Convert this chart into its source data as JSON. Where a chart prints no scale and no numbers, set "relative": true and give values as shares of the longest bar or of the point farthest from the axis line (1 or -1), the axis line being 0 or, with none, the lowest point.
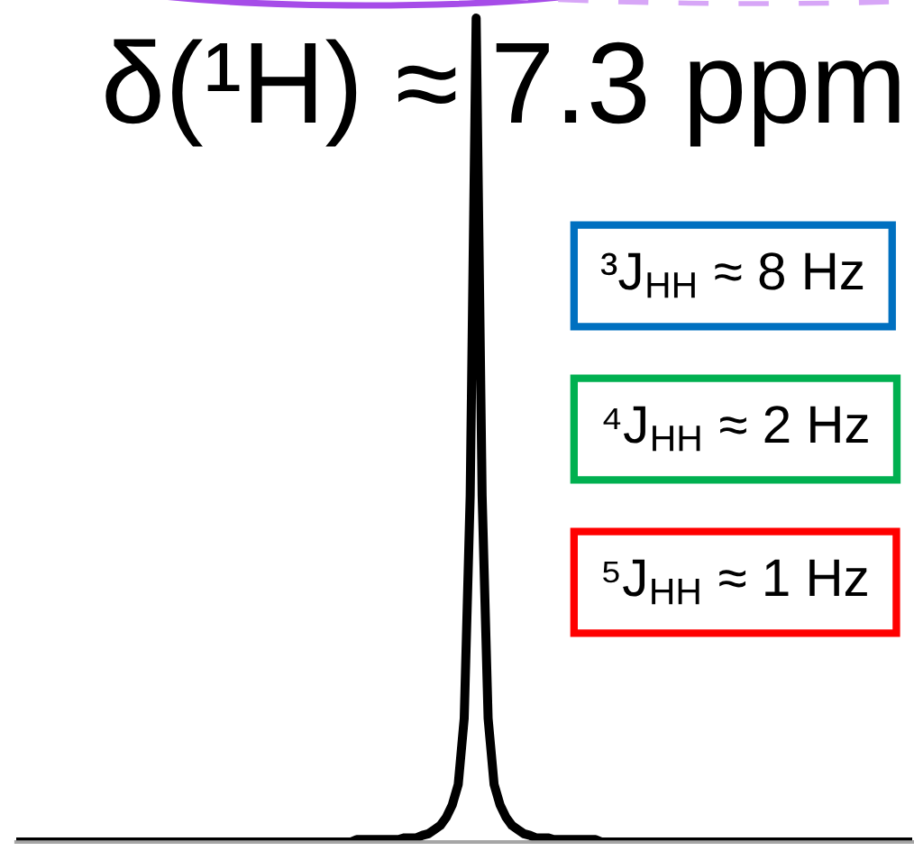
{
  "chart_data": {
    "type": "line",
    "title": "δ(¹H) ≈ 7.3 ppm",
    "relative": true,
    "categories": [
      null,
      null,
      null,
      null,
      null,
      null,
      null,
      null,
      null,
      null,
      null,
      null,
      null,
      null,
      null,
      null,
      null,
      null,
      null,
      null,
      null,
      null,
      null,
      null,
      null,
      null,
      null,
      null,
      null,
      null,
      null,
      null,
      null,
      null,
      null,
      null,
      null,
      null,
      null,
      null,
      null,
      null,
      null,
      null,
      null,
      null,
      null,
      null,
      null,
      null,
      null,
      null,
      null,
      null,
      null,
      null,
      null,
      null,
      null,
      null,
      null,
      null,
      null,
      null,
      null,
      null,
      null,
      null,
      null,
      null,
      null,
      null,
      null,
      null,
      null,
      null,
      null,
      null,
      null,
      null,
      null,
      null,
      null,
      null,
      null,
      null,
      null,
      null,
      null,
      null,
      null,
      null,
      null,
      null,
      null,
      null,
      null,
      null,
      null,
      null,
      null,
      null,
      null,
      null,
      null,
      null,
      null,
      null,
      null,
      null,
      null,
      null,
      null,
      null,
      null,
      null,
      null,
      null,
      null,
      null,
      null,
      null,
      null,
      null,
      null,
      null,
      null,
      null,
      null,
      null,
      null,
      null,
      null,
      null,
      null,
      null,
      null,
      null,
      null,
      null,
      null,
      null,
      null,
      null,
      null,
      null,
      null,
      null,
      null,
      null,
      null
    ],
    "series": [
      {
        "color": "#000000",
        "values": [
          0,
          0,
          0,
          0,
          0,
          0,
          0,
          0,
          0,
          0,
          0,
          0,
          0,
          0,
          0,
          0,
          0,
          0,
          0,
          0,
          0,
          0,
          0,
          0,
          0,
          0,
          0,
          0,
          0,
          0,
          0,
          0,
          0,
          0,
          0,
          0,
          0,
          0,
          0,
          0,
          0,
          0,
          0,
          0,
          0,
          0,
          0,
          0,
          0,
          0,
          0,
          0,
          0,
          0,
          0,
          0,
          0,
          0.003,
          0.003,
          0.003,
          0.003,
          0.003,
          0.003,
          0.003,
          0.003,
          0.005,
          0.005,
          0.005,
          0.008,
          0.01,
          0.015,
          0.02,
          0.03,
          0.045,
          0.07,
          0.15,
          0.42,
          1,
          0.42,
          0.15,
          0.07,
          0.045,
          0.03,
          0.02,
          0.015,
          0.01,
          0.008,
          0.005,
          0.005,
          0.005,
          0.003,
          0.003,
          0.003,
          0.003,
          0.003,
          0.003,
          0.003,
          0.003,
          0,
          0,
          0,
          0,
          0,
          0,
          0,
          0,
          0,
          0,
          0,
          0,
          0,
          0,
          0,
          0,
          0,
          0,
          0,
          0,
          0,
          0,
          0,
          0,
          0,
          0,
          0,
          0,
          0,
          0,
          0,
          0,
          0,
          0,
          0,
          0,
          0,
          0,
          0,
          0,
          0,
          0,
          0,
          0,
          0,
          0,
          0,
          0,
          0,
          0,
          0,
          0,
          0
        ]
      }
    ],
    "annotations": [
      "³J$_{HH}$ ≈ 8 Hz",
      "⁴J$_{HH}$ ≈ 2 Hz",
      "⁵J$_{HH}$ ≈ 1 Hz"
    ]
  }
}
